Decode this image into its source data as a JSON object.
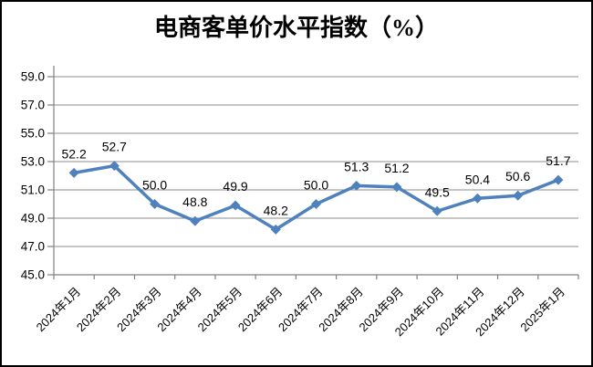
{
  "chart_data": {
    "type": "line",
    "title": "电商客单价水平指数（%）",
    "categories": [
      "2024年1月",
      "2024年2月",
      "2024年3月",
      "2024年4月",
      "2024年5月",
      "2024年6月",
      "2024年7月",
      "2024年8月",
      "2024年9月",
      "2024年10月",
      "2024年11月",
      "2024年12月",
      "2025年1月"
    ],
    "values": [
      52.2,
      52.7,
      50.0,
      48.8,
      49.9,
      48.2,
      50.0,
      51.3,
      51.2,
      49.5,
      50.4,
      50.6,
      51.7
    ],
    "value_labels": [
      "52.2",
      "52.7",
      "50.0",
      "48.8",
      "49.9",
      "48.2",
      "50.0",
      "51.3",
      "51.2",
      "49.5",
      "50.4",
      "50.6",
      "51.7"
    ],
    "xlabel": "",
    "ylabel": "",
    "ylim": [
      45.0,
      59.0
    ],
    "ytick_step": 2.0,
    "ytick_labels": [
      "45.0",
      "47.0",
      "49.0",
      "51.0",
      "53.0",
      "55.0",
      "57.0",
      "59.0"
    ],
    "grid": "horizontal",
    "legend": "none",
    "marker": "diamond",
    "colors": {
      "series": "#4F81BD",
      "gridline": "#8C8C8C",
      "axis": "#808080",
      "text": "#000000",
      "background": "#FFFFFF",
      "border": "#000000"
    }
  }
}
